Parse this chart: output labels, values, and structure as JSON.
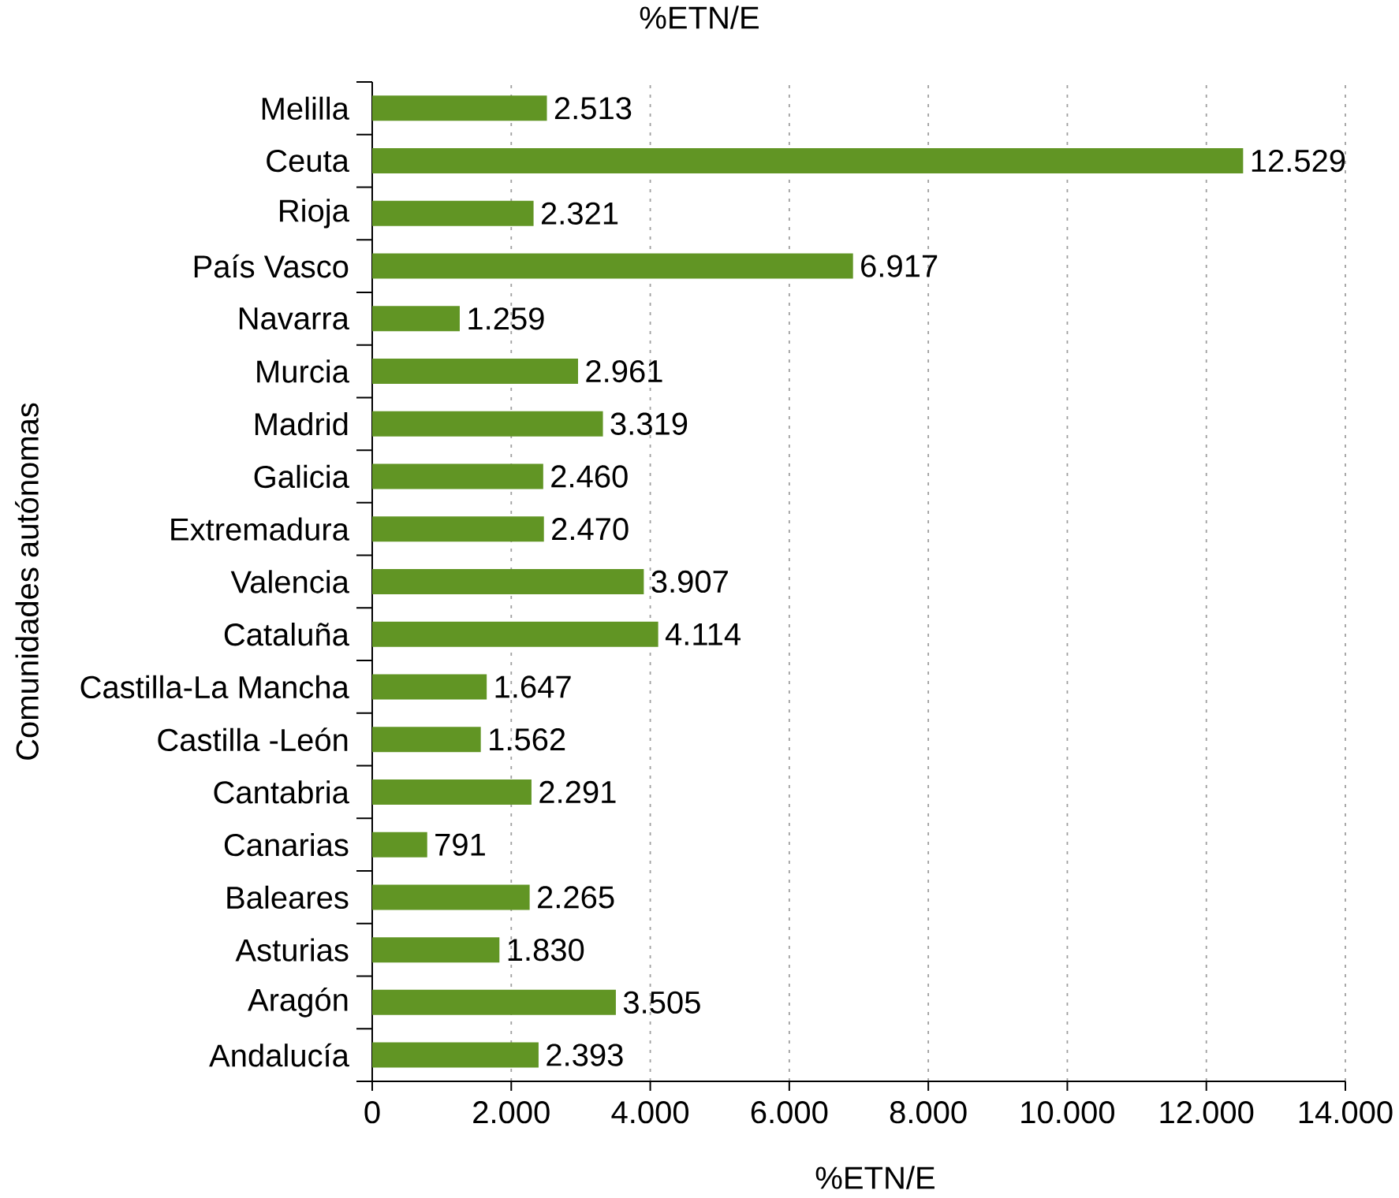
{
  "chart_data": {
    "type": "bar",
    "orientation": "horizontal",
    "title": "%ETN/E",
    "xlabel": "%ETN/E",
    "ylabel": "Comunidades autónomas",
    "categories": [
      "Melilla",
      "Ceuta",
      "Rioja",
      "País Vasco",
      "Navarra",
      "Murcia",
      "Madrid",
      "Galicia",
      "Extremadura",
      "Valencia",
      "Cataluña",
      "Castilla-La Mancha",
      "Castilla -León",
      "Cantabria",
      "Canarias",
      "Baleares",
      "Asturias",
      "Aragón",
      "Andalucía"
    ],
    "values": [
      2513,
      12529,
      2321,
      6917,
      1259,
      2961,
      3319,
      2460,
      2470,
      3907,
      4114,
      1647,
      1562,
      2291,
      791,
      2265,
      1830,
      3505,
      2393
    ],
    "value_labels": [
      "2.513",
      "12.529",
      "2.321",
      "6.917",
      "1.259",
      "2.961",
      "3.319",
      "2.460",
      "2.470",
      "3.907",
      "4.114",
      "1.647",
      "1.562",
      "2.291",
      "791",
      "2.265",
      "1.830",
      "3.505",
      "2.393"
    ],
    "color": "#619524",
    "xlim": [
      0,
      14000
    ],
    "xticks": [
      0,
      {
        "value": 2000,
        "label": "2.000"
      },
      {
        "value": 4000,
        "label": "4.000"
      },
      {
        "value": 6000,
        "label": "6.000"
      },
      {
        "value": 8000,
        "label": "8.000"
      },
      {
        "value": 10000,
        "label": "10.000"
      },
      {
        "value": 12000,
        "label": "12.000"
      },
      {
        "value": 14000,
        "label": "14.000"
      }
    ],
    "grid": "x"
  }
}
